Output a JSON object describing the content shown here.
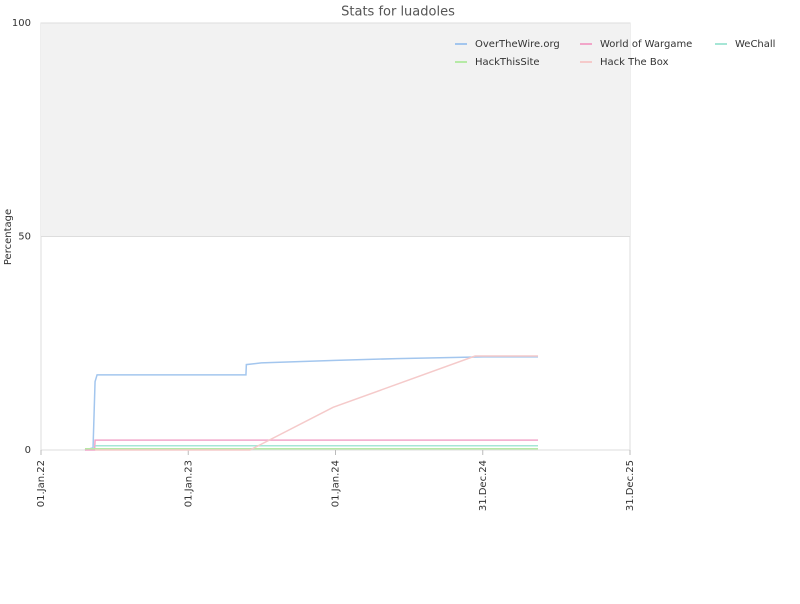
{
  "chart_data": {
    "type": "line",
    "title": "Stats for luadoles",
    "y_label": "Percentage",
    "xlim": [
      "2022-01-01",
      "2025-12-31"
    ],
    "xticks": [
      {
        "value": "2022-01-01",
        "label": "01.Jan.22"
      },
      {
        "value": "2023-01-01",
        "label": "01.Jan.23"
      },
      {
        "value": "2024-01-01",
        "label": "01.Jan.24"
      },
      {
        "value": "2024-12-31",
        "label": "31.Dec.24"
      },
      {
        "value": "2025-12-31",
        "label": "31.Dec.25"
      }
    ],
    "ylim": [
      0,
      100
    ],
    "yticks": [
      0,
      50,
      100
    ],
    "shade_above": 50,
    "grid": true,
    "legend": "top-right",
    "series": [
      {
        "name": "OverTheWire.org",
        "color": "#a3c6ee",
        "x": [
          "2022-04-20",
          "2022-05-10",
          "2022-05-15",
          "2022-05-20",
          "2023-05-24",
          "2023-05-25",
          "2023-07-01",
          "2024-01-01",
          "2024-06-01",
          "2024-12-31",
          "2025-05-17"
        ],
        "values": [
          0,
          0.5,
          16,
          17.6,
          17.6,
          20,
          20.4,
          21,
          21.4,
          21.8,
          21.8
        ]
      },
      {
        "name": "World of Wargame",
        "color": "#f2a6c9",
        "x": [
          "2022-04-20",
          "2022-05-14",
          "2022-05-15",
          "2025-05-17"
        ],
        "values": [
          0,
          0,
          2.3,
          2.3
        ]
      },
      {
        "name": "WeChall",
        "color": "#a6e6d6",
        "x": [
          "2022-05-15",
          "2025-05-17"
        ],
        "values": [
          1,
          1
        ]
      },
      {
        "name": "HackThisSite",
        "color": "#b6eaa6",
        "x": [
          "2022-04-20",
          "2025-05-17"
        ],
        "values": [
          0.3,
          0.3
        ]
      },
      {
        "name": "Hack The Box",
        "color": "#f5caca",
        "x": [
          "2022-05-15",
          "2023-06-03",
          "2023-12-26",
          "2024-12-12",
          "2025-05-17"
        ],
        "values": [
          0,
          0,
          10,
          22,
          22
        ]
      }
    ]
  }
}
